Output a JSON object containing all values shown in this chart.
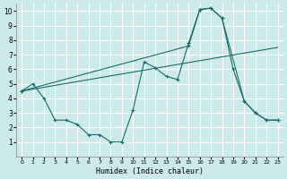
{
  "xlabel": "Humidex (Indice chaleur)",
  "ylabel": "",
  "bg_color": "#cceaea",
  "grid_color": "#ffffff",
  "line_color": "#1a6b6b",
  "xlim": [
    -0.5,
    23.5
  ],
  "ylim": [
    0,
    10.5
  ],
  "xticks": [
    0,
    1,
    2,
    3,
    4,
    5,
    6,
    7,
    8,
    9,
    10,
    11,
    12,
    13,
    14,
    15,
    16,
    17,
    18,
    19,
    20,
    21,
    22,
    23
  ],
  "yticks": [
    1,
    2,
    3,
    4,
    5,
    6,
    7,
    8,
    9,
    10
  ],
  "line1_x": [
    0,
    1,
    2,
    3,
    4,
    5,
    6,
    7,
    8,
    9,
    10,
    11,
    12,
    13,
    14,
    15,
    16,
    17,
    18,
    19,
    20,
    21,
    22,
    23
  ],
  "line1_y": [
    4.5,
    5.0,
    4.0,
    2.5,
    2.5,
    2.2,
    1.5,
    1.5,
    1.0,
    1.0,
    3.2,
    6.5,
    6.1,
    5.5,
    5.3,
    7.8,
    10.1,
    10.2,
    9.5,
    6.0,
    3.8,
    3.0,
    2.5,
    2.5
  ],
  "line2_x": [
    0,
    15,
    16,
    17,
    18,
    20,
    21,
    22,
    23
  ],
  "line2_y": [
    4.5,
    7.6,
    10.1,
    10.2,
    9.5,
    3.8,
    3.0,
    2.5,
    2.5
  ],
  "line3_x": [
    0,
    23
  ],
  "line3_y": [
    4.5,
    7.5
  ]
}
